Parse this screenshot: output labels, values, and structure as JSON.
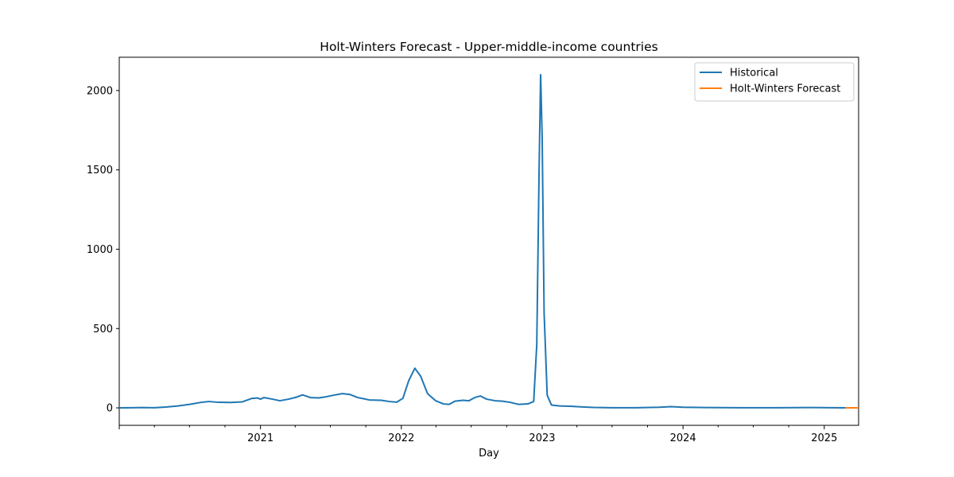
{
  "chart_data": {
    "type": "line",
    "title": "Holt-Winters Forecast - Upper-middle-income countries",
    "xlabel": "Day",
    "ylabel": "",
    "x_type": "date",
    "xlim": [
      "2020-01-01",
      "2025-03-31"
    ],
    "ylim": [
      -110,
      2210
    ],
    "y_ticks": [
      0,
      500,
      1000,
      1500,
      2000
    ],
    "x_ticks": [
      {
        "date": "2021-01-01",
        "label": "2021"
      },
      {
        "date": "2022-01-01",
        "label": "2022"
      },
      {
        "date": "2023-01-01",
        "label": "2023"
      },
      {
        "date": "2024-01-01",
        "label": "2024"
      },
      {
        "date": "2025-01-01",
        "label": "2025"
      }
    ],
    "grid": false,
    "legend_position": "top-right",
    "colors": {
      "Historical": "#1f77b4",
      "Holt-Winters Forecast": "#ff7f0e"
    },
    "series": [
      {
        "name": "Historical",
        "points": [
          [
            "2020-01-01",
            0
          ],
          [
            "2020-02-01",
            1
          ],
          [
            "2020-03-01",
            2
          ],
          [
            "2020-04-01",
            1
          ],
          [
            "2020-05-01",
            5
          ],
          [
            "2020-06-01",
            12
          ],
          [
            "2020-07-01",
            22
          ],
          [
            "2020-08-01",
            35
          ],
          [
            "2020-08-20",
            40
          ],
          [
            "2020-09-15",
            35
          ],
          [
            "2020-10-15",
            34
          ],
          [
            "2020-11-15",
            38
          ],
          [
            "2020-12-10",
            60
          ],
          [
            "2020-12-25",
            62
          ],
          [
            "2021-01-01",
            55
          ],
          [
            "2021-01-10",
            65
          ],
          [
            "2021-02-01",
            55
          ],
          [
            "2021-02-20",
            45
          ],
          [
            "2021-03-15",
            55
          ],
          [
            "2021-04-05",
            68
          ],
          [
            "2021-04-20",
            82
          ],
          [
            "2021-05-10",
            65
          ],
          [
            "2021-06-01",
            63
          ],
          [
            "2021-06-20",
            70
          ],
          [
            "2021-07-10",
            80
          ],
          [
            "2021-08-01",
            90
          ],
          [
            "2021-08-20",
            85
          ],
          [
            "2021-09-10",
            65
          ],
          [
            "2021-09-25",
            58
          ],
          [
            "2021-10-10",
            50
          ],
          [
            "2021-11-10",
            48
          ],
          [
            "2021-12-01",
            40
          ],
          [
            "2021-12-20",
            36
          ],
          [
            "2022-01-05",
            60
          ],
          [
            "2022-01-20",
            170
          ],
          [
            "2022-02-05",
            250
          ],
          [
            "2022-02-20",
            200
          ],
          [
            "2022-03-10",
            90
          ],
          [
            "2022-03-31",
            45
          ],
          [
            "2022-04-20",
            25
          ],
          [
            "2022-05-05",
            22
          ],
          [
            "2022-05-20",
            42
          ],
          [
            "2022-06-10",
            48
          ],
          [
            "2022-06-25",
            45
          ],
          [
            "2022-07-10",
            65
          ],
          [
            "2022-07-25",
            75
          ],
          [
            "2022-08-10",
            55
          ],
          [
            "2022-09-01",
            45
          ],
          [
            "2022-09-20",
            42
          ],
          [
            "2022-10-10",
            35
          ],
          [
            "2022-11-01",
            22
          ],
          [
            "2022-11-25",
            25
          ],
          [
            "2022-12-10",
            40
          ],
          [
            "2022-12-18",
            400
          ],
          [
            "2022-12-24",
            1500
          ],
          [
            "2022-12-28",
            2100
          ],
          [
            "2023-01-01",
            1700
          ],
          [
            "2023-01-06",
            600
          ],
          [
            "2023-01-14",
            80
          ],
          [
            "2023-01-25",
            18
          ],
          [
            "2023-02-15",
            12
          ],
          [
            "2023-03-15",
            10
          ],
          [
            "2023-04-15",
            6
          ],
          [
            "2023-05-15",
            3
          ],
          [
            "2023-07-01",
            1
          ],
          [
            "2023-09-01",
            1
          ],
          [
            "2023-11-01",
            4
          ],
          [
            "2023-12-01",
            8
          ],
          [
            "2024-01-01",
            4
          ],
          [
            "2024-03-01",
            2
          ],
          [
            "2024-06-01",
            1
          ],
          [
            "2024-09-01",
            1
          ],
          [
            "2024-12-01",
            2
          ],
          [
            "2025-02-24",
            0
          ]
        ]
      },
      {
        "name": "Holt-Winters Forecast",
        "points": [
          [
            "2025-02-24",
            0
          ],
          [
            "2025-03-31",
            0
          ]
        ]
      }
    ]
  }
}
